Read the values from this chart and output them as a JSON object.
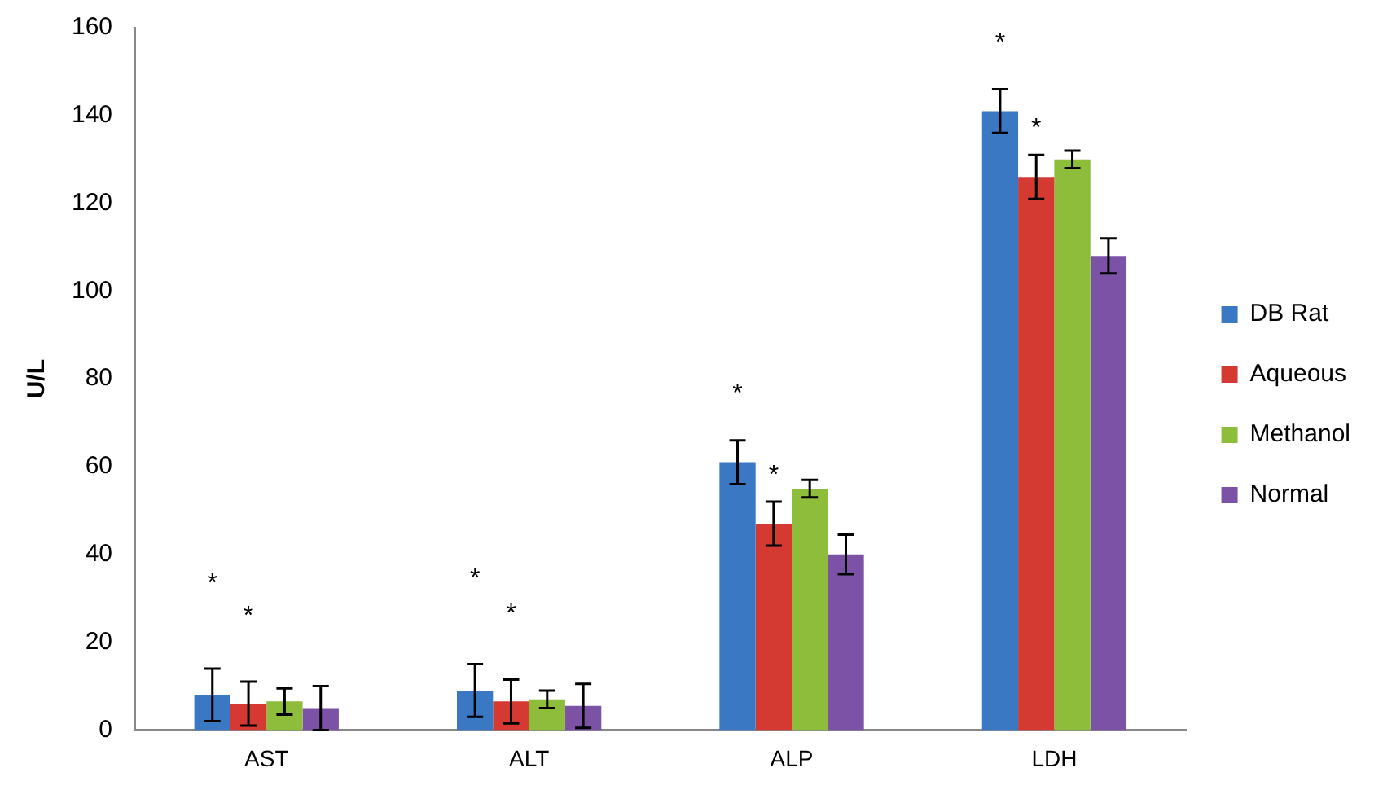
{
  "chart_data": {
    "type": "bar",
    "ylabel": "U/L",
    "categories": [
      "AST",
      "ALT",
      "ALP",
      "LDH"
    ],
    "series": [
      {
        "name": "DB Rat",
        "color": "#3a78c3",
        "values": [
          8,
          9,
          61,
          141
        ],
        "errors": [
          6,
          6,
          5,
          5
        ]
      },
      {
        "name": "Aqueous",
        "color": "#d43a32",
        "values": [
          6,
          6.5,
          47,
          126
        ],
        "errors": [
          5,
          5,
          5,
          5
        ]
      },
      {
        "name": "Methanol",
        "color": "#8ebd3c",
        "values": [
          6.5,
          7,
          55,
          130
        ],
        "errors": [
          3,
          2,
          2,
          2
        ]
      },
      {
        "name": "Normal",
        "color": "#7b52a6",
        "values": [
          5,
          5.5,
          40,
          108
        ],
        "errors": [
          5,
          5,
          4.5,
          4
        ]
      }
    ],
    "annotations": [
      "*",
      "*",
      "*",
      "*",
      "*",
      "*",
      "*",
      "*"
    ],
    "ylim": [
      0,
      160
    ],
    "yticks": [
      0,
      20,
      40,
      60,
      80,
      100,
      120,
      140,
      160
    ],
    "grid": false,
    "legend": "right"
  }
}
